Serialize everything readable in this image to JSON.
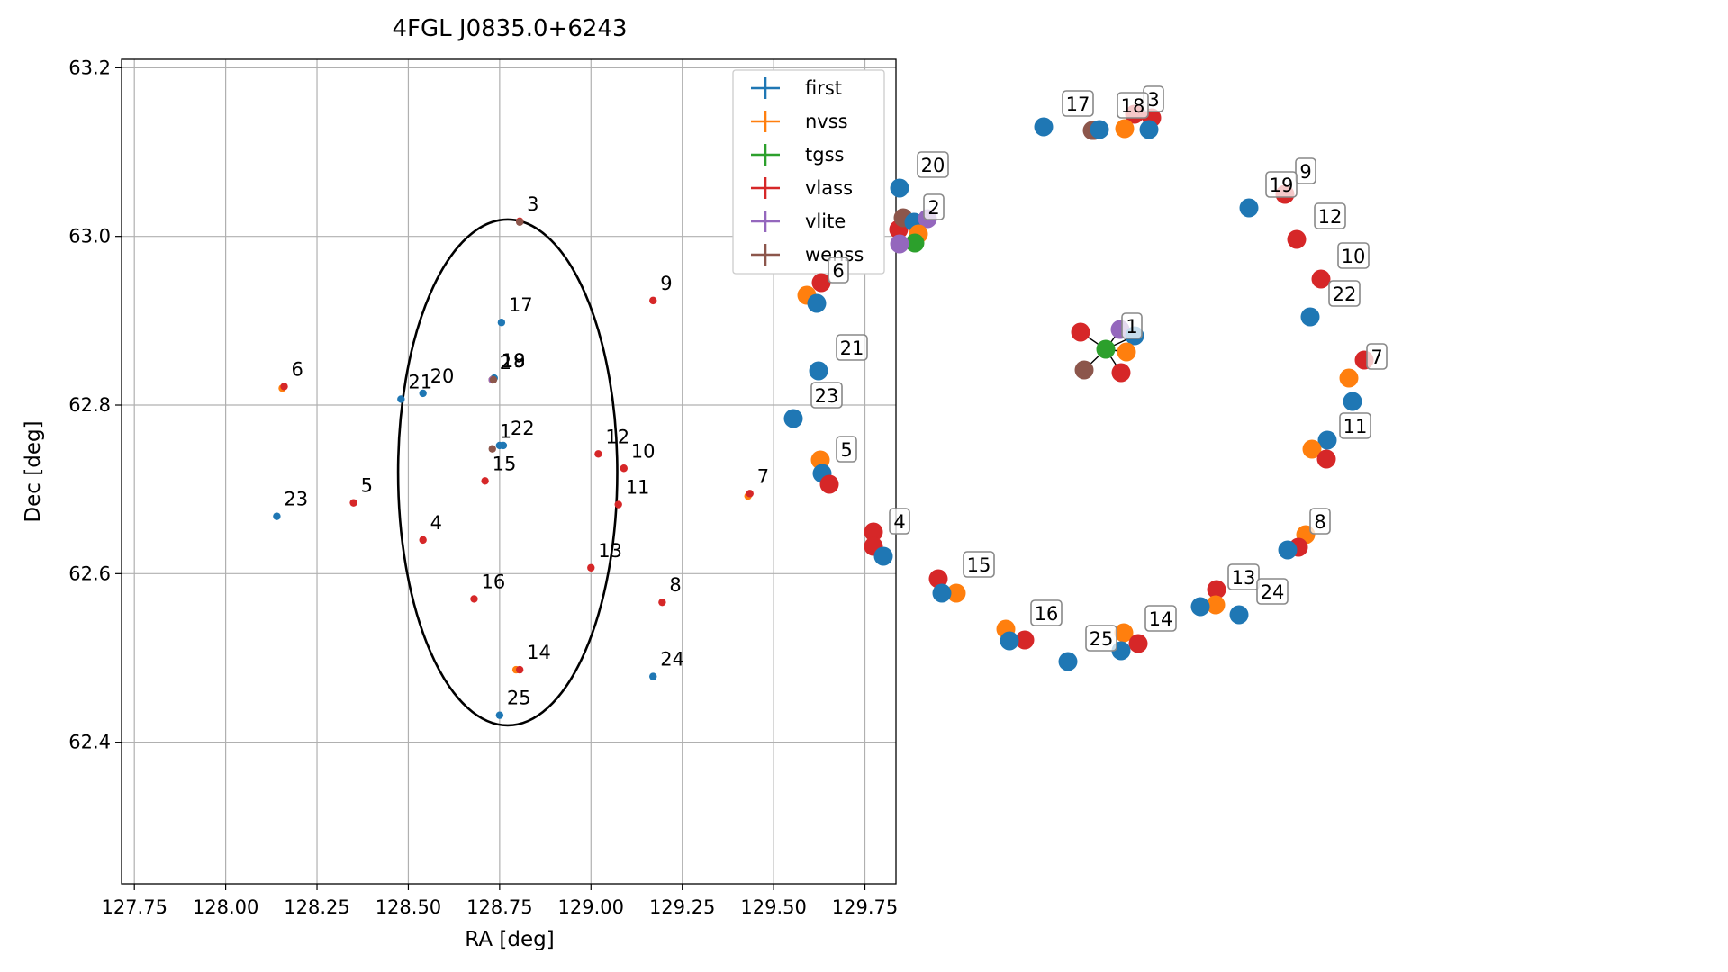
{
  "chart_data": [
    {
      "type": "scatter",
      "title": "4FGL J0835.0+6243",
      "xlabel": "RA [deg]",
      "ylabel": "Dec [deg]",
      "xlim": [
        127.715,
        129.835
      ],
      "ylim": [
        62.232,
        63.21
      ],
      "xticks": [
        "127.75",
        "128.00",
        "128.25",
        "128.50",
        "128.75",
        "129.00",
        "129.25",
        "129.50",
        "129.75"
      ],
      "yticks": [
        "62.4",
        "62.6",
        "62.8",
        "63.0",
        "63.2"
      ],
      "grid": true,
      "legend_position": "top-right",
      "colors": {
        "first": "#1f77b4",
        "nvss": "#ff7f0e",
        "tgss": "#2ca02c",
        "vlass": "#d62728",
        "vlite": "#9467bd",
        "wenss": "#8c564b"
      },
      "circle": {
        "center": [
          128.772,
          62.72
        ],
        "radius_deg": 0.3
      },
      "series": [
        {
          "name": "first",
          "points": [
            {
              "x": 128.75,
              "y": 62.752
            },
            {
              "x": 128.755,
              "y": 62.898
            },
            {
              "x": 128.735,
              "y": 62.832
            },
            {
              "x": 128.54,
              "y": 62.814
            },
            {
              "x": 128.48,
              "y": 62.807
            },
            {
              "x": 128.76,
              "y": 62.752
            },
            {
              "x": 128.14,
              "y": 62.668
            },
            {
              "x": 129.17,
              "y": 62.478
            },
            {
              "x": 128.75,
              "y": 62.432
            }
          ]
        },
        {
          "name": "nvss",
          "points": [
            {
              "x": 128.155,
              "y": 62.82
            },
            {
              "x": 129.43,
              "y": 62.692
            },
            {
              "x": 128.795,
              "y": 62.486
            },
            {
              "x": 128.73,
              "y": 62.83
            }
          ]
        },
        {
          "name": "tgss",
          "points": [
            {
              "x": 128.73,
              "y": 62.83
            }
          ]
        },
        {
          "name": "vlass",
          "points": [
            {
              "x": 128.73,
              "y": 62.83
            },
            {
              "x": 128.805,
              "y": 63.018
            },
            {
              "x": 128.54,
              "y": 62.64
            },
            {
              "x": 128.35,
              "y": 62.684
            },
            {
              "x": 128.16,
              "y": 62.822
            },
            {
              "x": 129.435,
              "y": 62.695
            },
            {
              "x": 129.195,
              "y": 62.566
            },
            {
              "x": 129.17,
              "y": 62.924
            },
            {
              "x": 129.09,
              "y": 62.725
            },
            {
              "x": 129.075,
              "y": 62.682
            },
            {
              "x": 129.02,
              "y": 62.742
            },
            {
              "x": 129.0,
              "y": 62.607
            },
            {
              "x": 128.805,
              "y": 62.486
            },
            {
              "x": 128.71,
              "y": 62.71
            },
            {
              "x": 128.68,
              "y": 62.57
            }
          ]
        },
        {
          "name": "vlite",
          "points": [
            {
              "x": 128.73,
              "y": 62.83
            }
          ]
        },
        {
          "name": "wenss",
          "points": [
            {
              "x": 128.733,
              "y": 62.83
            },
            {
              "x": 128.805,
              "y": 63.017
            },
            {
              "x": 128.73,
              "y": 62.748
            }
          ]
        }
      ],
      "labels": [
        {
          "text": "1",
          "x": 128.73,
          "y": 62.748
        },
        {
          "text": "2",
          "x": 128.73,
          "y": 62.83
        },
        {
          "text": "3",
          "x": 128.805,
          "y": 63.018
        },
        {
          "text": "4",
          "x": 128.54,
          "y": 62.64
        },
        {
          "text": "5",
          "x": 128.35,
          "y": 62.684
        },
        {
          "text": "6",
          "x": 128.16,
          "y": 62.822
        },
        {
          "text": "7",
          "x": 129.435,
          "y": 62.695
        },
        {
          "text": "8",
          "x": 129.195,
          "y": 62.566
        },
        {
          "text": "9",
          "x": 129.17,
          "y": 62.924
        },
        {
          "text": "10",
          "x": 129.09,
          "y": 62.725
        },
        {
          "text": "11",
          "x": 129.075,
          "y": 62.682
        },
        {
          "text": "12",
          "x": 129.02,
          "y": 62.742
        },
        {
          "text": "13",
          "x": 129.0,
          "y": 62.607
        },
        {
          "text": "14",
          "x": 128.805,
          "y": 62.486
        },
        {
          "text": "15",
          "x": 128.71,
          "y": 62.71
        },
        {
          "text": "16",
          "x": 128.68,
          "y": 62.57
        },
        {
          "text": "17",
          "x": 128.755,
          "y": 62.898
        },
        {
          "text": "18",
          "x": 128.735,
          "y": 62.832
        },
        {
          "text": "19",
          "x": 128.735,
          "y": 62.832
        },
        {
          "text": "20",
          "x": 128.54,
          "y": 62.814
        },
        {
          "text": "21",
          "x": 128.48,
          "y": 62.807
        },
        {
          "text": "22",
          "x": 128.76,
          "y": 62.752
        },
        {
          "text": "23",
          "x": 128.14,
          "y": 62.668
        },
        {
          "text": "24",
          "x": 129.17,
          "y": 62.478
        },
        {
          "text": "25",
          "x": 128.75,
          "y": 62.432
        }
      ]
    },
    {
      "type": "scatter",
      "title": "",
      "xlabel": "",
      "ylabel": "",
      "note_axes": "hidden",
      "groups": [
        {
          "label": "1",
          "points": [
            [
              "vlite",
              0,
              0
            ],
            [
              "first",
              0,
              0
            ],
            [
              "nvss",
              0,
              0
            ],
            [
              "tgss",
              0,
              0
            ],
            [
              "vlass",
              0,
              0
            ],
            [
              "wenss",
              0,
              0
            ]
          ]
        },
        {
          "label": "2",
          "points": [
            [
              "wenss",
              0,
              0
            ],
            [
              "vlass",
              0,
              0
            ],
            [
              "vlite",
              0,
              0
            ],
            [
              "first",
              0,
              0
            ],
            [
              "nvss",
              0,
              0
            ],
            [
              "tgss",
              0,
              0
            ]
          ]
        },
        {
          "label": "3",
          "points": [
            [
              "vlass",
              0,
              0
            ],
            [
              "nvss",
              0,
              0
            ],
            [
              "wenss",
              0,
              0
            ],
            [
              "first",
              0,
              0
            ]
          ]
        },
        {
          "label": "4",
          "points": [
            [
              "vlass",
              0,
              0
            ],
            [
              "vlass",
              0,
              0
            ],
            [
              "first",
              0,
              0
            ]
          ]
        },
        {
          "label": "5",
          "points": [
            [
              "nvss",
              0,
              0
            ],
            [
              "first",
              0,
              0
            ],
            [
              "vlass",
              0,
              0
            ]
          ]
        },
        {
          "label": "6",
          "points": [
            [
              "vlass",
              0,
              0
            ],
            [
              "nvss",
              0,
              0
            ],
            [
              "first",
              0,
              0
            ]
          ]
        },
        {
          "label": "7",
          "points": [
            [
              "vlass",
              0,
              0
            ],
            [
              "nvss",
              0,
              0
            ],
            [
              "first",
              0,
              0
            ]
          ]
        },
        {
          "label": "8",
          "points": [
            [
              "nvss",
              0,
              0
            ],
            [
              "first",
              0,
              0
            ],
            [
              "vlass",
              0,
              0
            ]
          ]
        },
        {
          "label": "9",
          "points": [
            [
              "vlass",
              0,
              0
            ]
          ]
        },
        {
          "label": "10",
          "points": [
            [
              "vlass",
              0,
              0
            ]
          ]
        },
        {
          "label": "11",
          "points": [
            [
              "first",
              0,
              0
            ],
            [
              "nvss",
              0,
              0
            ],
            [
              "vlass",
              0,
              0
            ]
          ]
        },
        {
          "label": "12",
          "points": [
            [
              "vlass",
              0,
              0
            ]
          ]
        },
        {
          "label": "13",
          "points": [
            [
              "vlass",
              0,
              0
            ],
            [
              "nvss",
              0,
              0
            ],
            [
              "first",
              0,
              0
            ]
          ]
        },
        {
          "label": "14",
          "points": [
            [
              "nvss",
              0,
              0
            ],
            [
              "vlass",
              0,
              0
            ],
            [
              "first",
              0,
              0
            ]
          ]
        },
        {
          "label": "15",
          "points": [
            [
              "vlass",
              0,
              0
            ],
            [
              "nvss",
              0,
              0
            ],
            [
              "first",
              0,
              0
            ]
          ]
        },
        {
          "label": "16",
          "points": [
            [
              "nvss",
              0,
              0
            ],
            [
              "vlass",
              0,
              0
            ],
            [
              "first",
              0,
              0
            ]
          ]
        },
        {
          "label": "17",
          "points": [
            [
              "first",
              0,
              0
            ]
          ]
        },
        {
          "label": "18",
          "points": [
            [
              "wenss",
              0,
              0
            ],
            [
              "first",
              0,
              0
            ]
          ]
        },
        {
          "label": "19",
          "points": [
            [
              "first",
              0,
              0
            ]
          ]
        },
        {
          "label": "20",
          "points": [
            [
              "first",
              0,
              0
            ]
          ]
        },
        {
          "label": "21",
          "points": [
            [
              "first",
              0,
              0
            ]
          ]
        },
        {
          "label": "22",
          "points": [
            [
              "first",
              0,
              0
            ]
          ]
        },
        {
          "label": "23",
          "points": [
            [
              "first",
              0,
              0
            ]
          ]
        },
        {
          "label": "24",
          "points": [
            [
              "first",
              0,
              0
            ]
          ]
        },
        {
          "label": "25",
          "points": [
            [
              "first",
              0,
              0
            ]
          ]
        }
      ]
    }
  ]
}
